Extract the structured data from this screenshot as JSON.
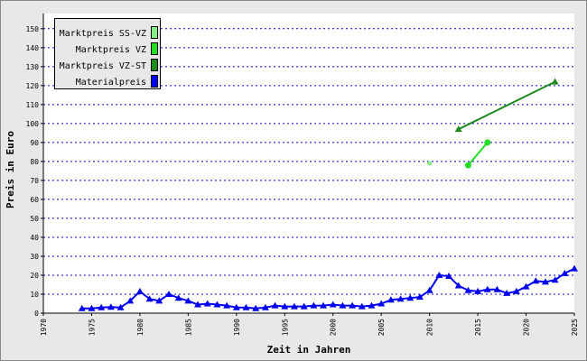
{
  "chart_data": {
    "type": "line",
    "xlabel": "Zeit in Jahren",
    "ylabel": "Preis in Euro",
    "xlim": [
      1970,
      2025
    ],
    "xticks": [
      1970,
      1975,
      1980,
      1985,
      1990,
      1995,
      2000,
      2005,
      2010,
      2015,
      2020,
      2025
    ],
    "ylim": [
      0,
      158
    ],
    "yticks": [
      0,
      10,
      20,
      30,
      40,
      50,
      60,
      70,
      80,
      90,
      100,
      110,
      120,
      130,
      140,
      150
    ],
    "grid": true,
    "legend_position": "upper left",
    "series": [
      {
        "name": "Marktpreis SS-VZ",
        "color": "#88ee88",
        "marker": "circle",
        "x": [
          2010
        ],
        "values": [
          79
        ]
      },
      {
        "name": "Marktpreis VZ",
        "color": "#22dd22",
        "marker": "circle",
        "x": [
          2014,
          2016
        ],
        "values": [
          78,
          90
        ]
      },
      {
        "name": "Marktpreis VZ-ST",
        "color": "#1e8b1e",
        "marker": "triangle",
        "x": [
          2013,
          2023
        ],
        "values": [
          97,
          122
        ]
      },
      {
        "name": "Materialpreis",
        "color": "#0000ee",
        "marker": "triangle",
        "x": [
          1974,
          1975,
          1976,
          1977,
          1978,
          1979,
          1980,
          1981,
          1982,
          1983,
          1984,
          1985,
          1986,
          1987,
          1988,
          1989,
          1990,
          1991,
          1992,
          1993,
          1994,
          1995,
          1996,
          1997,
          1998,
          1999,
          2000,
          2001,
          2002,
          2003,
          2004,
          2005,
          2006,
          2007,
          2008,
          2009,
          2010,
          2011,
          2012,
          2013,
          2014,
          2015,
          2016,
          2017,
          2018,
          2019,
          2020,
          2021,
          2022,
          2023,
          2024,
          2025
        ],
        "values": [
          2.5,
          2.5,
          3,
          3.2,
          3,
          6.5,
          11.5,
          7.5,
          6.5,
          10,
          8,
          6.5,
          4.5,
          5,
          4.5,
          4,
          3,
          3,
          2.5,
          3,
          4,
          3.5,
          3.5,
          3.5,
          4,
          4,
          4.5,
          4,
          4,
          3.5,
          4,
          5,
          7,
          7.5,
          8,
          8.5,
          12,
          20,
          19.5,
          14.5,
          12,
          11.5,
          12.5,
          12.5,
          10.5,
          11.5,
          14,
          17,
          16.5,
          17.5,
          21,
          23.5
        ]
      }
    ]
  }
}
